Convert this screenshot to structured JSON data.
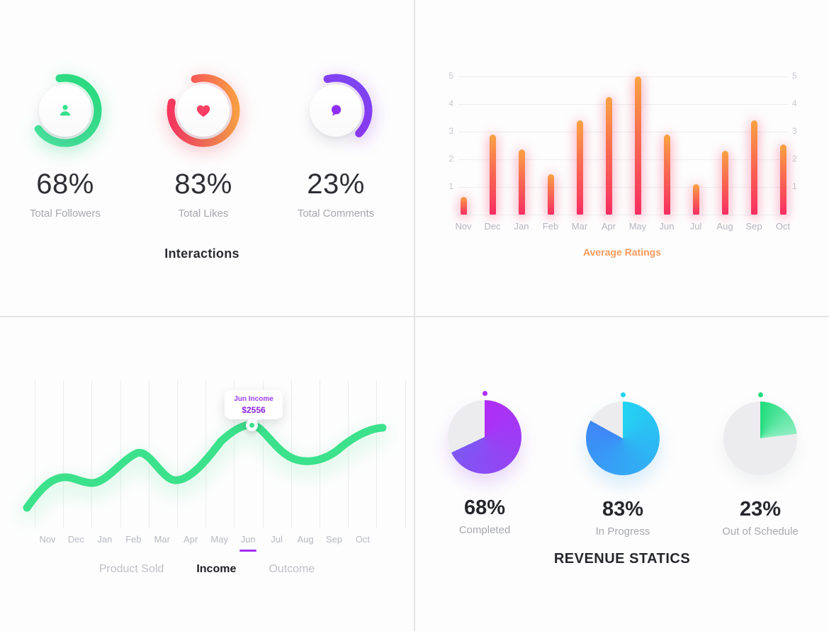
{
  "chart_data": [
    {
      "id": "interactions",
      "type": "pie",
      "variant": "progress-rings",
      "title": "Interactions",
      "series": [
        {
          "label": "Total Followers",
          "value": 68,
          "display": "68%",
          "icon": "person-icon",
          "color": "#38e08e"
        },
        {
          "label": "Total Likes",
          "value": 83,
          "display": "83%",
          "icon": "heart-icon",
          "color_start": "#f8385f",
          "color_end": "#faa244"
        },
        {
          "label": "Total Comments",
          "value": 23,
          "display": "23%",
          "icon": "chat-bubble-icon",
          "color": "#8e30f3"
        }
      ]
    },
    {
      "id": "average-ratings",
      "type": "bar",
      "title": "Average Ratings",
      "title_color": "#f89a5b",
      "categories": [
        "Nov",
        "Dec",
        "Jan",
        "Feb",
        "Mar",
        "Apr",
        "May",
        "Jun",
        "Jul",
        "Aug",
        "Sep",
        "Oct"
      ],
      "values": [
        0.65,
        2.9,
        2.35,
        1.45,
        3.4,
        4.25,
        5,
        2.9,
        1.1,
        2.3,
        3.4,
        2.55
      ],
      "ylim": [
        0,
        5
      ],
      "yticks": [
        1,
        2,
        3,
        4,
        5
      ],
      "yticks_on_both_sides": true,
      "grid": true,
      "bar_gradient": [
        "#faa244",
        "#f72e62"
      ]
    },
    {
      "id": "income",
      "type": "line",
      "categories": [
        "Nov",
        "Dec",
        "Jan",
        "Feb",
        "Mar",
        "Apr",
        "May",
        "Jun",
        "Jul",
        "Aug",
        "Sep",
        "Oct"
      ],
      "values": [
        0.31,
        0.33,
        0.37,
        0.63,
        0.41,
        0.37,
        0.77,
        1.0,
        0.66,
        0.55,
        0.65,
        0.9
      ],
      "note": "no y-axis shown; values are relative heights 0-1, Jun peak labeled $2556",
      "line_color": "#3ce18b",
      "highlight_month": "Jun",
      "tooltip": {
        "title": "Jun Income",
        "value": "$2556"
      },
      "tabs": [
        {
          "label": "Product Sold",
          "active": false
        },
        {
          "label": "Income",
          "active": true
        },
        {
          "label": "Outcome",
          "active": false
        }
      ]
    },
    {
      "id": "revenue-statics",
      "type": "pie",
      "title": "REVENUE STATICS",
      "empty_color": "#ececee",
      "series": [
        {
          "label": "Completed",
          "value": 68,
          "display": "68%",
          "color_start": "#b02df5",
          "color_end": "#7e57f4"
        },
        {
          "label": "In Progress",
          "value": 83,
          "display": "83%",
          "color_start": "#23d3f2",
          "color_end": "#3f86f7"
        },
        {
          "label": "Out of Schedule",
          "value": 23,
          "display": "23%",
          "color_start": "#20dc7d",
          "color_end": "#8ceec0"
        }
      ]
    }
  ]
}
